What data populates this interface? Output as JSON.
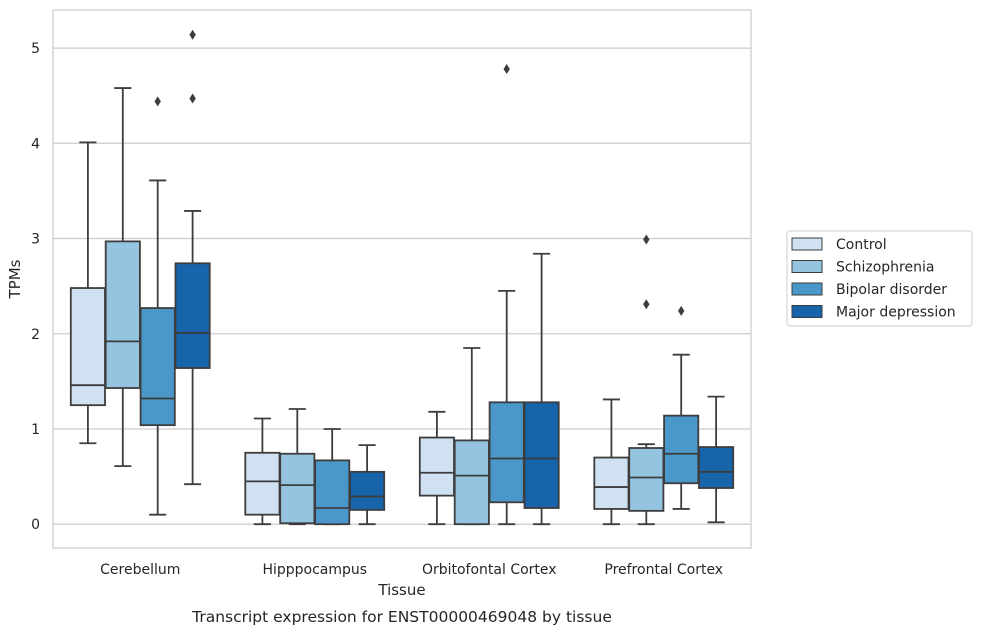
{
  "chart_data": {
    "type": "box",
    "xlabel": "Tissue",
    "ylabel": "TPMs",
    "caption": "Transcript expression for ENST00000469048 by tissue",
    "ylim": [
      -0.25,
      5.4
    ],
    "yticks": [
      0,
      1,
      2,
      3,
      4,
      5
    ],
    "grid": true,
    "legend_position": "right",
    "categories": [
      "Cerebellum",
      "Hipppocampus",
      "Orbitofontal Cortex",
      "Prefrontal Cortex"
    ],
    "series": [
      {
        "name": "Control",
        "color": "#d0e1f2",
        "boxes": [
          {
            "whislo": 0.85,
            "q1": 1.25,
            "med": 1.46,
            "q3": 2.48,
            "whishi": 4.01,
            "fliers": []
          },
          {
            "whislo": 0.0,
            "q1": 0.1,
            "med": 0.45,
            "q3": 0.75,
            "whishi": 1.11,
            "fliers": []
          },
          {
            "whislo": 0.0,
            "q1": 0.3,
            "med": 0.54,
            "q3": 0.91,
            "whishi": 1.18,
            "fliers": []
          },
          {
            "whislo": 0.0,
            "q1": 0.16,
            "med": 0.39,
            "q3": 0.7,
            "whishi": 1.31,
            "fliers": []
          }
        ]
      },
      {
        "name": "Schizophrenia",
        "color": "#94c4df",
        "boxes": [
          {
            "whislo": 0.61,
            "q1": 1.43,
            "med": 1.92,
            "q3": 2.97,
            "whishi": 4.58,
            "fliers": []
          },
          {
            "whislo": 0.0,
            "q1": 0.01,
            "med": 0.41,
            "q3": 0.74,
            "whishi": 1.21,
            "fliers": []
          },
          {
            "whislo": 0.0,
            "q1": 0.0,
            "med": 0.51,
            "q3": 0.88,
            "whishi": 1.85,
            "fliers": []
          },
          {
            "whislo": 0.0,
            "q1": 0.14,
            "med": 0.49,
            "q3": 0.8,
            "whishi": 0.84,
            "fliers": [
              2.31,
              2.99
            ]
          }
        ]
      },
      {
        "name": "Bipolar disorder",
        "color": "#4a98c9",
        "boxes": [
          {
            "whislo": 0.1,
            "q1": 1.04,
            "med": 1.32,
            "q3": 2.27,
            "whishi": 3.61,
            "fliers": [
              4.44
            ]
          },
          {
            "whislo": 0.0,
            "q1": 0.0,
            "med": 0.17,
            "q3": 0.67,
            "whishi": 1.0,
            "fliers": []
          },
          {
            "whislo": 0.0,
            "q1": 0.23,
            "med": 0.69,
            "q3": 1.28,
            "whishi": 2.45,
            "fliers": [
              4.78
            ]
          },
          {
            "whislo": 0.16,
            "q1": 0.43,
            "med": 0.74,
            "q3": 1.14,
            "whishi": 1.78,
            "fliers": [
              2.24
            ]
          }
        ]
      },
      {
        "name": "Major depression",
        "color": "#1764ab",
        "boxes": [
          {
            "whislo": 0.42,
            "q1": 1.64,
            "med": 2.01,
            "q3": 2.74,
            "whishi": 3.29,
            "fliers": [
              4.47,
              5.14
            ]
          },
          {
            "whislo": 0.0,
            "q1": 0.15,
            "med": 0.29,
            "q3": 0.55,
            "whishi": 0.83,
            "fliers": []
          },
          {
            "whislo": 0.0,
            "q1": 0.17,
            "med": 0.69,
            "q3": 1.28,
            "whishi": 2.84,
            "fliers": []
          },
          {
            "whislo": 0.02,
            "q1": 0.38,
            "med": 0.55,
            "q3": 0.81,
            "whishi": 1.34,
            "fliers": []
          }
        ]
      }
    ]
  }
}
